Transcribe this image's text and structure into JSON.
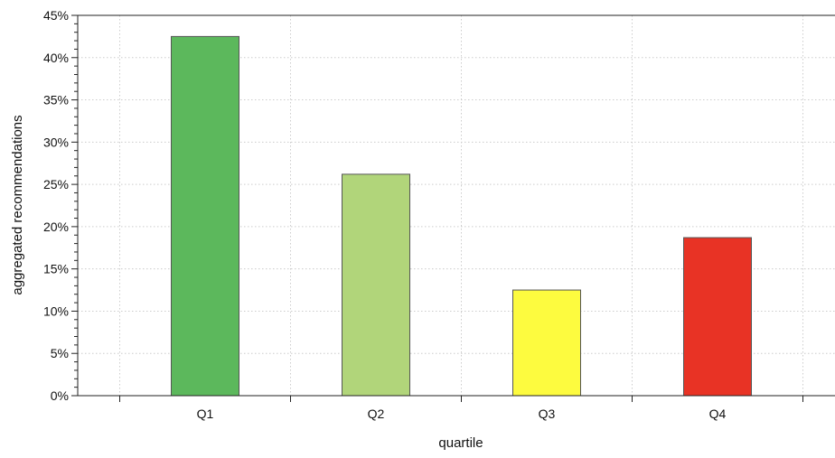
{
  "chart_data": {
    "type": "bar",
    "title": "",
    "xlabel": "quartile",
    "ylabel": "aggregated recommendations",
    "categories": [
      "Q1",
      "Q2",
      "Q3",
      "Q4"
    ],
    "values": [
      42.5,
      26.2,
      12.5,
      18.7
    ],
    "value_unit": "%",
    "bar_colors": [
      "#5cb85c",
      "#b1d57a",
      "#fdfb3f",
      "#e83325"
    ],
    "bar_edge_color": "#555555",
    "ylim": [
      0,
      45
    ],
    "yticks": [
      0,
      5,
      10,
      15,
      20,
      25,
      30,
      35,
      40,
      45
    ],
    "ytick_labels": [
      "0%",
      "5%",
      "10%",
      "15%",
      "20%",
      "25%",
      "30%",
      "35%",
      "40%",
      "45%"
    ],
    "grid": true,
    "grid_color": "#cccccc",
    "legend": "none"
  }
}
